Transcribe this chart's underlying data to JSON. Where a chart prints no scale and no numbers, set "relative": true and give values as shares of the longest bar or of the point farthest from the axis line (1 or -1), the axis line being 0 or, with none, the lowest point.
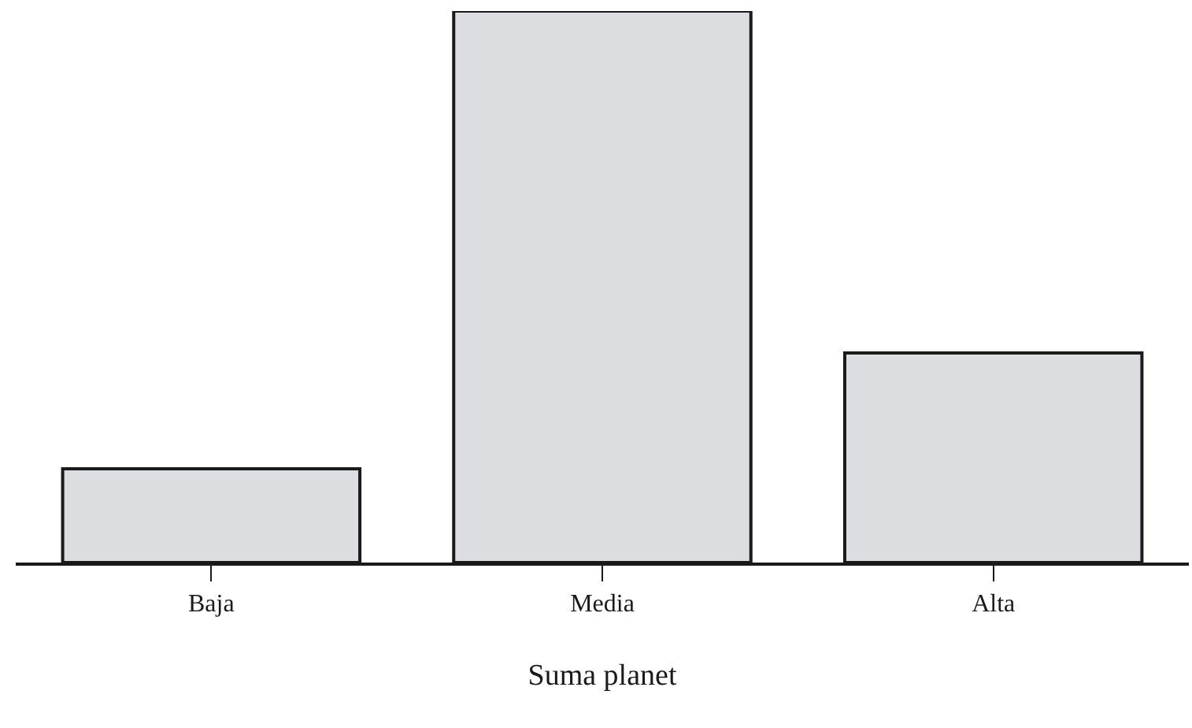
{
  "chart_data": {
    "type": "bar",
    "xlabel": "Suma planet",
    "categories": [
      "Baja",
      "Media",
      "Alta"
    ],
    "values": [
      0.17,
      1,
      0.38
    ],
    "color": "#dcdde0",
    "relative": true
  }
}
